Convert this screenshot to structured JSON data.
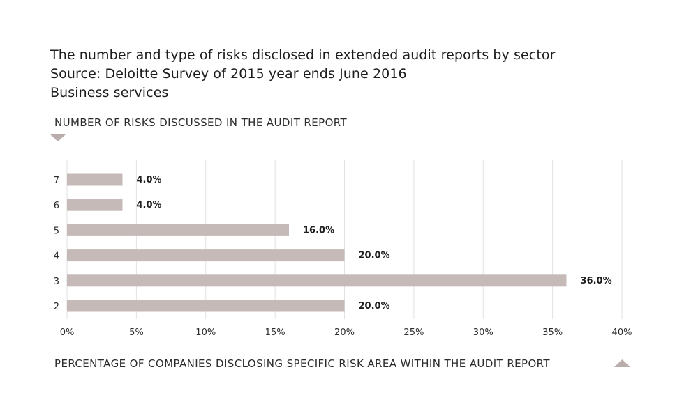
{
  "chart_data": {
    "type": "bar",
    "orientation": "horizontal",
    "title_lines": [
      "The number and type of risks disclosed in extended audit reports by sector",
      "Source: Deloitte Survey of 2015 year ends June 2016",
      "Business services"
    ],
    "ylabel": "NUMBER OF RISKS DISCUSSED IN THE AUDIT REPORT",
    "xlabel": "PERCENTAGE OF COMPANIES DISCLOSING SPECIFIC RISK AREA WITHIN THE AUDIT REPORT",
    "categories": [
      "7",
      "6",
      "5",
      "4",
      "3",
      "2"
    ],
    "values": [
      4.0,
      4.0,
      16.0,
      20.0,
      36.0,
      20.0
    ],
    "data_labels": [
      "4.0%",
      "4.0%",
      "16.0%",
      "20.0%",
      "36.0%",
      "20.0%"
    ],
    "xlim": [
      0,
      40
    ],
    "x_ticks": [
      0,
      5,
      10,
      15,
      20,
      25,
      30,
      35,
      40
    ],
    "x_tick_labels": [
      "0%",
      "5%",
      "10%",
      "15%",
      "20%",
      "25%",
      "30%",
      "35%",
      "40%"
    ],
    "grid": "vertical",
    "colors": {
      "bar": "#c6bab8",
      "grid": "#e2e2e2",
      "marker": "#b9adab",
      "text": "#1e1e1e"
    }
  }
}
